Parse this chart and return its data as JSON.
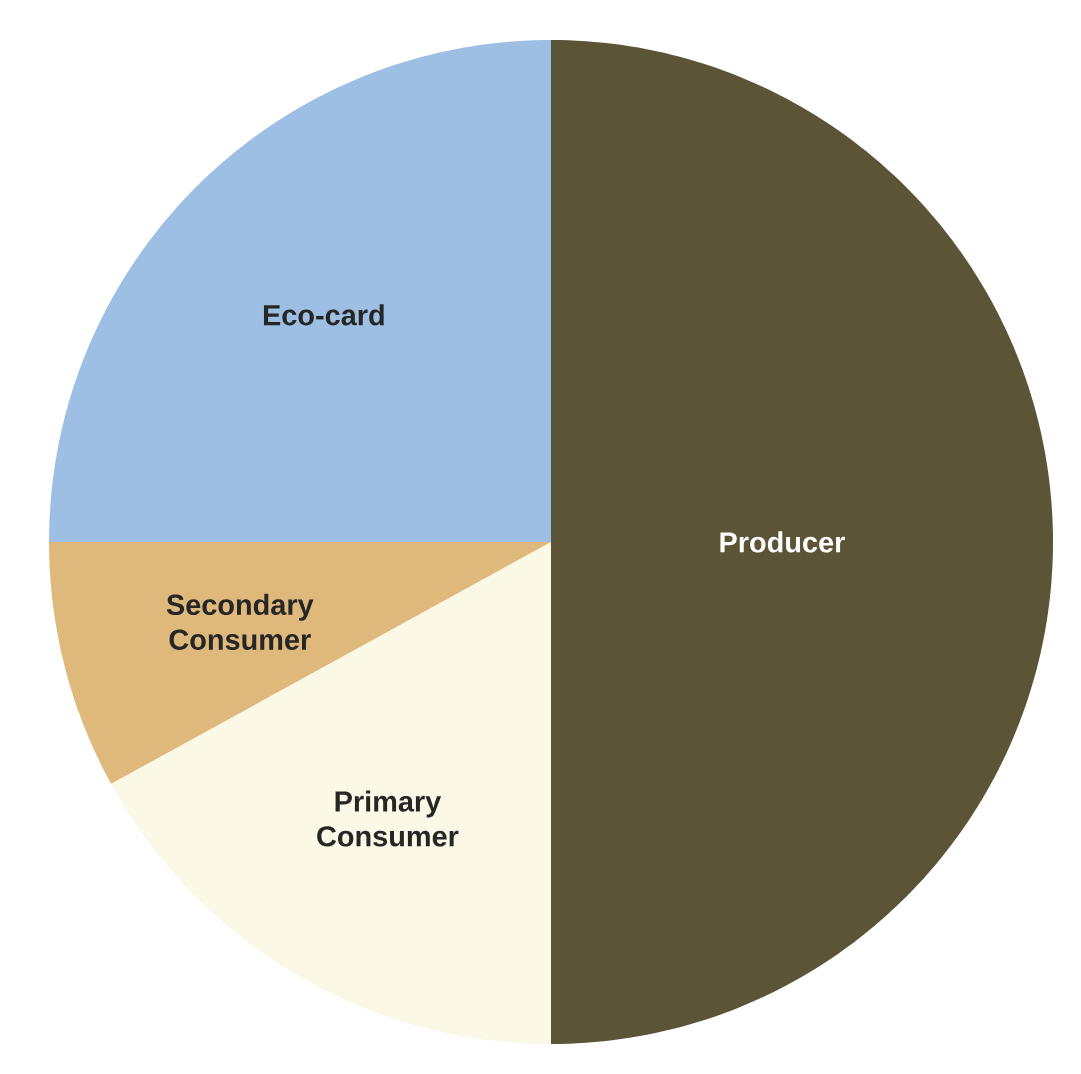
{
  "chart_data": {
    "type": "pie",
    "categories": [
      "Producer",
      "Primary Consumer",
      "Secondary Consumer",
      "Eco-card"
    ],
    "values": [
      50,
      17,
      8,
      25
    ],
    "colors": [
      "#5b5436",
      "#fcf8e6",
      "#dfb97c",
      "#9ebfe4"
    ]
  }
}
